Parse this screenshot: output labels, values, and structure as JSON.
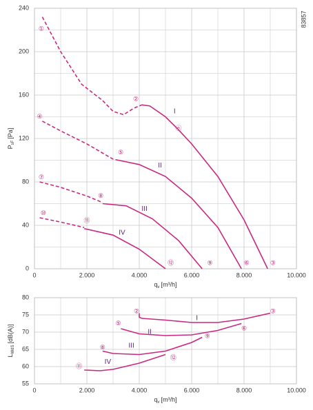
{
  "code": "83857",
  "chart_data": [
    {
      "type": "line",
      "xlim": [
        0,
        10000
      ],
      "xticks": [
        0,
        {
          "value": 2000,
          "label": "2.000"
        },
        {
          "value": 4000,
          "label": "4.000"
        },
        {
          "value": 6000,
          "label": "6.000"
        },
        {
          "value": 8000,
          "label": "8.000"
        },
        {
          "value": 10000,
          "label": "10.000"
        }
      ],
      "xgrid": [
        1000,
        3000,
        5000,
        7000,
        9000
      ],
      "ylim": [
        0,
        240
      ],
      "yticks": [
        0,
        40,
        80,
        120,
        160,
        200,
        240
      ],
      "ygrid": [
        20,
        60,
        100,
        140,
        180,
        220
      ],
      "x_label": {
        "main": "q",
        "sub": "v",
        "unit": "[m³/h]"
      },
      "y_label": {
        "main": "P",
        "sub": "sF",
        "unit": "[Pa]"
      },
      "series": [
        {
          "style": "dashed",
          "color": "#c8287f",
          "x": [
            300,
            1000,
            1800,
            2600,
            3000,
            3400,
            3800,
            4100
          ],
          "values": [
            232,
            200,
            170,
            155,
            145,
            142,
            148,
            151
          ]
        },
        {
          "style": "solid",
          "color": "#c8287f",
          "x": [
            4100,
            4400,
            5000,
            5500,
            6000,
            7000,
            8000,
            8900
          ],
          "values": [
            151,
            150,
            140,
            128,
            115,
            85,
            45,
            0
          ]
        },
        {
          "style": "dashed",
          "color": "#c8287f",
          "x": [
            300,
            1000,
            2000,
            3000,
            3200
          ],
          "values": [
            136,
            127,
            115,
            101,
            100
          ]
        },
        {
          "style": "solid",
          "color": "#c8287f",
          "x": [
            3200,
            4000,
            5000,
            6000,
            7000,
            7900
          ],
          "values": [
            100,
            96,
            85,
            65,
            38,
            0
          ]
        },
        {
          "style": "dashed",
          "color": "#c8287f",
          "x": [
            200,
            1000,
            2000,
            2600
          ],
          "values": [
            80,
            75,
            67,
            61
          ]
        },
        {
          "style": "solid",
          "color": "#c8287f",
          "x": [
            2600,
            3500,
            4500,
            5500,
            6400
          ],
          "values": [
            60,
            58,
            46,
            26,
            0
          ]
        },
        {
          "style": "dashed",
          "color": "#c8287f",
          "x": [
            200,
            1000,
            1900
          ],
          "values": [
            47,
            43,
            38
          ]
        },
        {
          "style": "solid",
          "color": "#c8287f",
          "x": [
            1900,
            3000,
            4000,
            5000
          ],
          "values": [
            37,
            31,
            18,
            0
          ]
        }
      ],
      "annotations": [
        {
          "text": "①",
          "x": 260,
          "y": 221
        },
        {
          "text": "②",
          "x": 3870,
          "y": 156
        },
        {
          "text": "③",
          "x": 9100,
          "y": 5
        },
        {
          "text": "④",
          "x": 200,
          "y": 140
        },
        {
          "text": "⑤",
          "x": 3290,
          "y": 107
        },
        {
          "text": "⑥",
          "x": 8100,
          "y": 5
        },
        {
          "text": "⑦",
          "x": 260,
          "y": 84
        },
        {
          "text": "⑧",
          "x": 2530,
          "y": 67
        },
        {
          "text": "⑨",
          "x": 6700,
          "y": 5
        },
        {
          "text": "⑩",
          "x": 340,
          "y": 51
        },
        {
          "text": "⑪",
          "x": 2000,
          "y": 44
        },
        {
          "text": "⑫",
          "x": 5200,
          "y": 5
        },
        {
          "text": "ⓝ",
          "x": 5500,
          "y": 129
        }
      ],
      "roman": [
        {
          "text": "I",
          "x": 5350,
          "y": 145
        },
        {
          "text": "II",
          "x": 4790,
          "y": 95
        },
        {
          "text": "III",
          "x": 4200,
          "y": 55
        },
        {
          "text": "IV",
          "x": 3340,
          "y": 33
        }
      ]
    },
    {
      "type": "line",
      "xlim": [
        0,
        10000
      ],
      "xticks": [
        0,
        {
          "value": 2000,
          "label": "2.000"
        },
        {
          "value": 4000,
          "label": "4.000"
        },
        {
          "value": 6000,
          "label": "6.000"
        },
        {
          "value": 8000,
          "label": "8.000"
        },
        {
          "value": 10000,
          "label": "10.000"
        }
      ],
      "xgrid": [
        1000,
        3000,
        5000,
        7000,
        9000
      ],
      "ylim": [
        55,
        80
      ],
      "yticks": [
        55,
        60,
        65,
        70,
        75,
        80
      ],
      "ygrid": [],
      "x_label": {
        "main": "q",
        "sub": "v",
        "unit": "[m³/h]"
      },
      "y_label": {
        "main": "L",
        "sub": "WdS",
        "unit": "[dB(A)]"
      },
      "series": [
        {
          "style": "solid",
          "color": "#c8287f",
          "x": [
            4000,
            4000,
            4100,
            5000,
            6000,
            7000,
            8000,
            9000
          ],
          "values": [
            75.5,
            74.3,
            74,
            73.5,
            72.8,
            72.8,
            73.8,
            75.5
          ]
        },
        {
          "style": "solid",
          "color": "#c8287f",
          "x": [
            3300,
            4000,
            5000,
            6000,
            7000,
            7900
          ],
          "values": [
            71,
            69.5,
            69,
            69.2,
            70.5,
            72.5
          ]
        },
        {
          "style": "solid",
          "color": "#c8287f",
          "x": [
            2600,
            3000,
            4000,
            5000,
            6000,
            6400
          ],
          "values": [
            64.5,
            63.8,
            63.5,
            64.5,
            67,
            68.5
          ]
        },
        {
          "style": "solid",
          "color": "#c8287f",
          "x": [
            1900,
            2500,
            3000,
            4000,
            5000
          ],
          "values": [
            59,
            58.8,
            59.2,
            61,
            63.5
          ]
        }
      ],
      "annotations": [
        {
          "text": "②",
          "x": 3900,
          "y": 76
        },
        {
          "text": "③",
          "x": 9100,
          "y": 76
        },
        {
          "text": "⑤",
          "x": 3200,
          "y": 72.5
        },
        {
          "text": "⑥",
          "x": 8000,
          "y": 71
        },
        {
          "text": "⑧",
          "x": 2600,
          "y": 65.5
        },
        {
          "text": "⑨",
          "x": 6600,
          "y": 68.8
        },
        {
          "text": "⑪",
          "x": 1700,
          "y": 60
        },
        {
          "text": "⑫",
          "x": 5300,
          "y": 62.5
        }
      ],
      "roman": [
        {
          "text": "I",
          "x": 6200,
          "y": 74
        },
        {
          "text": "II",
          "x": 4400,
          "y": 70
        },
        {
          "text": "III",
          "x": 3700,
          "y": 66
        },
        {
          "text": "IV",
          "x": 2800,
          "y": 61.3
        }
      ]
    }
  ]
}
